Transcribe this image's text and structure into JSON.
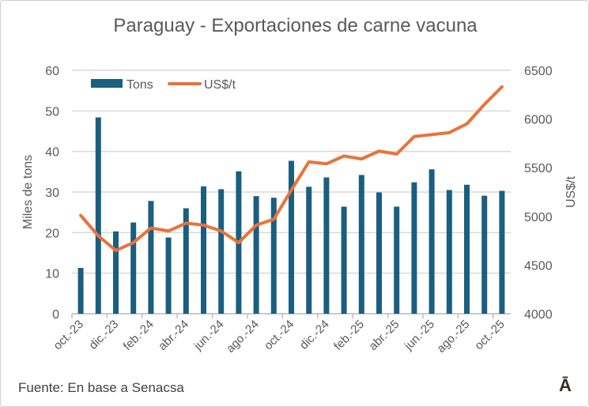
{
  "chart_data": {
    "type": "bar+line",
    "title": "Paraguay - Exportaciones de carne vacuna",
    "categories": [
      "oct.-23",
      "nov.-23",
      "dic.-23",
      "ene.-24",
      "feb.-24",
      "mar.-24",
      "abr.-24",
      "may.-24",
      "jun.-24",
      "jul.-24",
      "ago.-24",
      "sep.-24",
      "oct.-24",
      "nov.-24",
      "dic.-24",
      "ene.-25",
      "feb.-25",
      "mar.-25",
      "abr.-25",
      "may.-25",
      "jun.-25",
      "jul.-25",
      "ago.-25",
      "sep.-25",
      "oct.-25"
    ],
    "visible_tick_labels": [
      "oct.-23",
      "dic.-23",
      "feb.-24",
      "abr.-24",
      "jun.-24",
      "ago.-24",
      "oct.-24",
      "dic.-24",
      "feb.-25",
      "abr.-25",
      "jun.-25",
      "ago.-25",
      "oct.-25"
    ],
    "series": [
      {
        "name": "Tons",
        "type": "bar",
        "axis": "left",
        "color": "#1a5e80",
        "values": [
          11.3,
          48.4,
          20.3,
          22.5,
          27.8,
          18.8,
          26.0,
          31.4,
          30.7,
          35.1,
          29.0,
          28.6,
          37.7,
          31.3,
          33.6,
          26.4,
          34.2,
          29.9,
          26.4,
          32.4,
          35.6,
          30.5,
          31.8,
          29.1,
          30.3
        ]
      },
      {
        "name": "US$/t",
        "type": "line",
        "axis": "right",
        "color": "#e8733a",
        "values": [
          5010,
          4800,
          4650,
          4730,
          4880,
          4850,
          4930,
          4910,
          4850,
          4730,
          4910,
          4970,
          5270,
          5560,
          5540,
          5620,
          5590,
          5670,
          5640,
          5820,
          5840,
          5860,
          5950,
          6150,
          6330
        ]
      }
    ],
    "ylabel": "Miles de tons",
    "ylim": [
      0,
      60
    ],
    "yticks": [
      0,
      10,
      20,
      30,
      40,
      50,
      60
    ],
    "y2label": "US$/t",
    "y2lim": [
      4000,
      6500
    ],
    "y2ticks": [
      4000,
      4500,
      5000,
      5500,
      6000,
      6500
    ],
    "grid": true,
    "legend": "top-left"
  },
  "source": "Fuente: En base a Senacsa",
  "logo": "Ā"
}
